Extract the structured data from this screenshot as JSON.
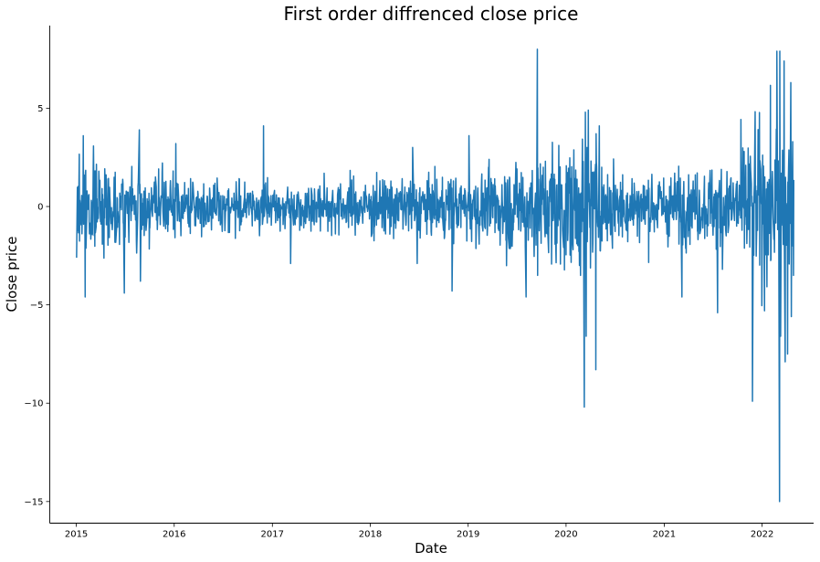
{
  "chart_data": {
    "type": "line",
    "title": "First order diffrenced close price",
    "xlabel": "Date",
    "ylabel": "Close price",
    "xlim": [
      "2014-09-24",
      "2022-07-12"
    ],
    "ylim": [
      -16.1,
      9.2
    ],
    "xticks": [
      "2015",
      "2016",
      "2017",
      "2018",
      "2019",
      "2020",
      "2021",
      "2022"
    ],
    "yticks": [
      5,
      0,
      -5,
      -10,
      -15
    ],
    "ytick_labels": [
      "5",
      "0",
      "−5",
      "−10",
      "−15"
    ],
    "grid": false,
    "legend": "none",
    "series_color": "#1f77b4",
    "series": [
      {
        "x_start": "2015-01-02",
        "x_end": "2022-04-29",
        "frequency": "trading days",
        "noise_seed": 7,
        "volatility_profile": [
          [
            "2015-01-02",
            1.3
          ],
          [
            "2015-09-01",
            1.1
          ],
          [
            "2016-03-01",
            0.8
          ],
          [
            "2017-01-01",
            0.65
          ],
          [
            "2018-02-01",
            0.85
          ],
          [
            "2019-01-01",
            0.9
          ],
          [
            "2020-02-15",
            2.0
          ],
          [
            "2020-06-01",
            1.1
          ],
          [
            "2021-06-01",
            1.0
          ],
          [
            "2022-01-01",
            2.3
          ],
          [
            "2022-04-29",
            2.3
          ]
        ],
        "points": [
          [
            "2015-01-02",
            -2.6
          ],
          [
            "2015-01-27",
            3.6
          ],
          [
            "2015-02-03",
            -4.6
          ],
          [
            "2015-06-29",
            -4.4
          ],
          [
            "2015-08-24",
            3.9
          ],
          [
            "2015-08-28",
            -3.8
          ],
          [
            "2016-01-07",
            3.2
          ],
          [
            "2016-11-29",
            4.1
          ],
          [
            "2017-03-10",
            -2.9
          ],
          [
            "2018-06-08",
            3.0
          ],
          [
            "2018-06-25",
            -2.9
          ],
          [
            "2018-11-02",
            -4.3
          ],
          [
            "2019-01-04",
            3.6
          ],
          [
            "2019-08-05",
            -4.6
          ],
          [
            "2019-09-16",
            8.0
          ],
          [
            "2019-09-17",
            -3.5
          ],
          [
            "2020-03-09",
            -10.2
          ],
          [
            "2020-03-13",
            4.8
          ],
          [
            "2020-03-16",
            -6.6
          ],
          [
            "2020-03-24",
            4.9
          ],
          [
            "2020-04-21",
            -8.3
          ],
          [
            "2020-04-22",
            3.7
          ],
          [
            "2020-05-04",
            4.1
          ],
          [
            "2021-03-08",
            -4.6
          ],
          [
            "2021-07-19",
            -5.4
          ],
          [
            "2021-11-26",
            -9.9
          ],
          [
            "2022-02-25",
            7.9
          ],
          [
            "2022-03-07",
            -15.0
          ],
          [
            "2022-03-08",
            7.9
          ],
          [
            "2022-03-11",
            -6.6
          ],
          [
            "2022-03-24",
            7.4
          ],
          [
            "2022-03-28",
            -7.9
          ],
          [
            "2022-04-06",
            -7.5
          ],
          [
            "2022-04-18",
            6.3
          ],
          [
            "2022-04-20",
            -5.6
          ],
          [
            "2022-04-25",
            3.3
          ],
          [
            "2022-04-28",
            -3.5
          ]
        ]
      }
    ]
  }
}
